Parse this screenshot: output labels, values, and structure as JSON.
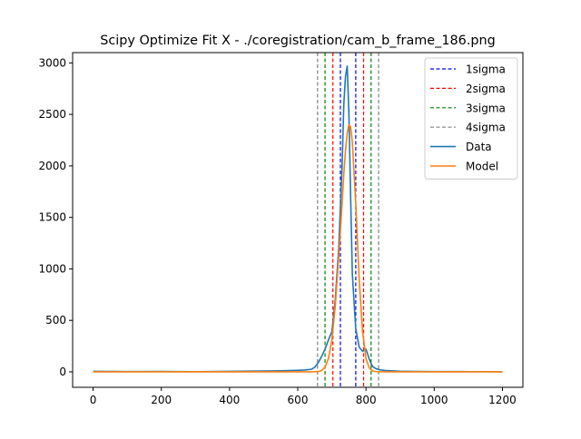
{
  "chart_data": {
    "type": "line",
    "title": "Scipy Optimize Fit X - ./coregistration/cam_b_frame_186.png",
    "xlabel": "",
    "ylabel": "",
    "xlim": [
      -60,
      1260
    ],
    "ylim": [
      -150,
      3100
    ],
    "xticks": [
      0,
      200,
      400,
      600,
      800,
      1000,
      1200
    ],
    "yticks": [
      0,
      500,
      1000,
      1500,
      2000,
      2500,
      3000
    ],
    "grid": false,
    "legend_position": "top-right",
    "vlines": [
      {
        "name": "1sigma",
        "color": "#0000ff",
        "x": [
          725,
          770
        ]
      },
      {
        "name": "2sigma",
        "color": "#ff0000",
        "x": [
          703,
          793
        ]
      },
      {
        "name": "3sigma",
        "color": "#008000",
        "x": [
          680,
          815
        ]
      },
      {
        "name": "4sigma",
        "color": "#808080",
        "x": [
          658,
          837
        ]
      }
    ],
    "series": [
      {
        "name": "Data",
        "color": "#1f77b4",
        "x": [
          0,
          100,
          200,
          300,
          400,
          500,
          550,
          600,
          620,
          640,
          650,
          660,
          670,
          680,
          690,
          700,
          710,
          720,
          730,
          735,
          740,
          745,
          750,
          755,
          760,
          770,
          780,
          790,
          800,
          805,
          810,
          815,
          820,
          830,
          840,
          860,
          900,
          950,
          1000,
          1100,
          1200
        ],
        "y": [
          5,
          3,
          4,
          2,
          5,
          8,
          10,
          15,
          18,
          25,
          45,
          90,
          150,
          220,
          310,
          390,
          700,
          1200,
          2000,
          2600,
          2870,
          2970,
          2500,
          1700,
          950,
          420,
          240,
          200,
          220,
          170,
          120,
          80,
          50,
          30,
          20,
          12,
          6,
          4,
          3,
          2,
          1
        ]
      },
      {
        "name": "Model",
        "color": "#ff7f0e",
        "x": [
          0,
          100,
          200,
          300,
          400,
          500,
          550,
          600,
          640,
          650,
          660,
          670,
          680,
          690,
          700,
          710,
          720,
          730,
          735,
          740,
          745,
          750,
          755,
          760,
          770,
          780,
          790,
          800,
          810,
          820,
          830,
          850,
          900,
          1000,
          1100,
          1200
        ],
        "y": [
          0,
          0,
          0,
          0,
          0,
          0,
          0,
          0,
          0,
          1,
          3,
          12,
          45,
          130,
          310,
          640,
          1110,
          1640,
          1920,
          2150,
          2320,
          2400,
          2380,
          2230,
          1640,
          900,
          390,
          130,
          35,
          8,
          2,
          0,
          0,
          0,
          0,
          0
        ]
      }
    ]
  }
}
